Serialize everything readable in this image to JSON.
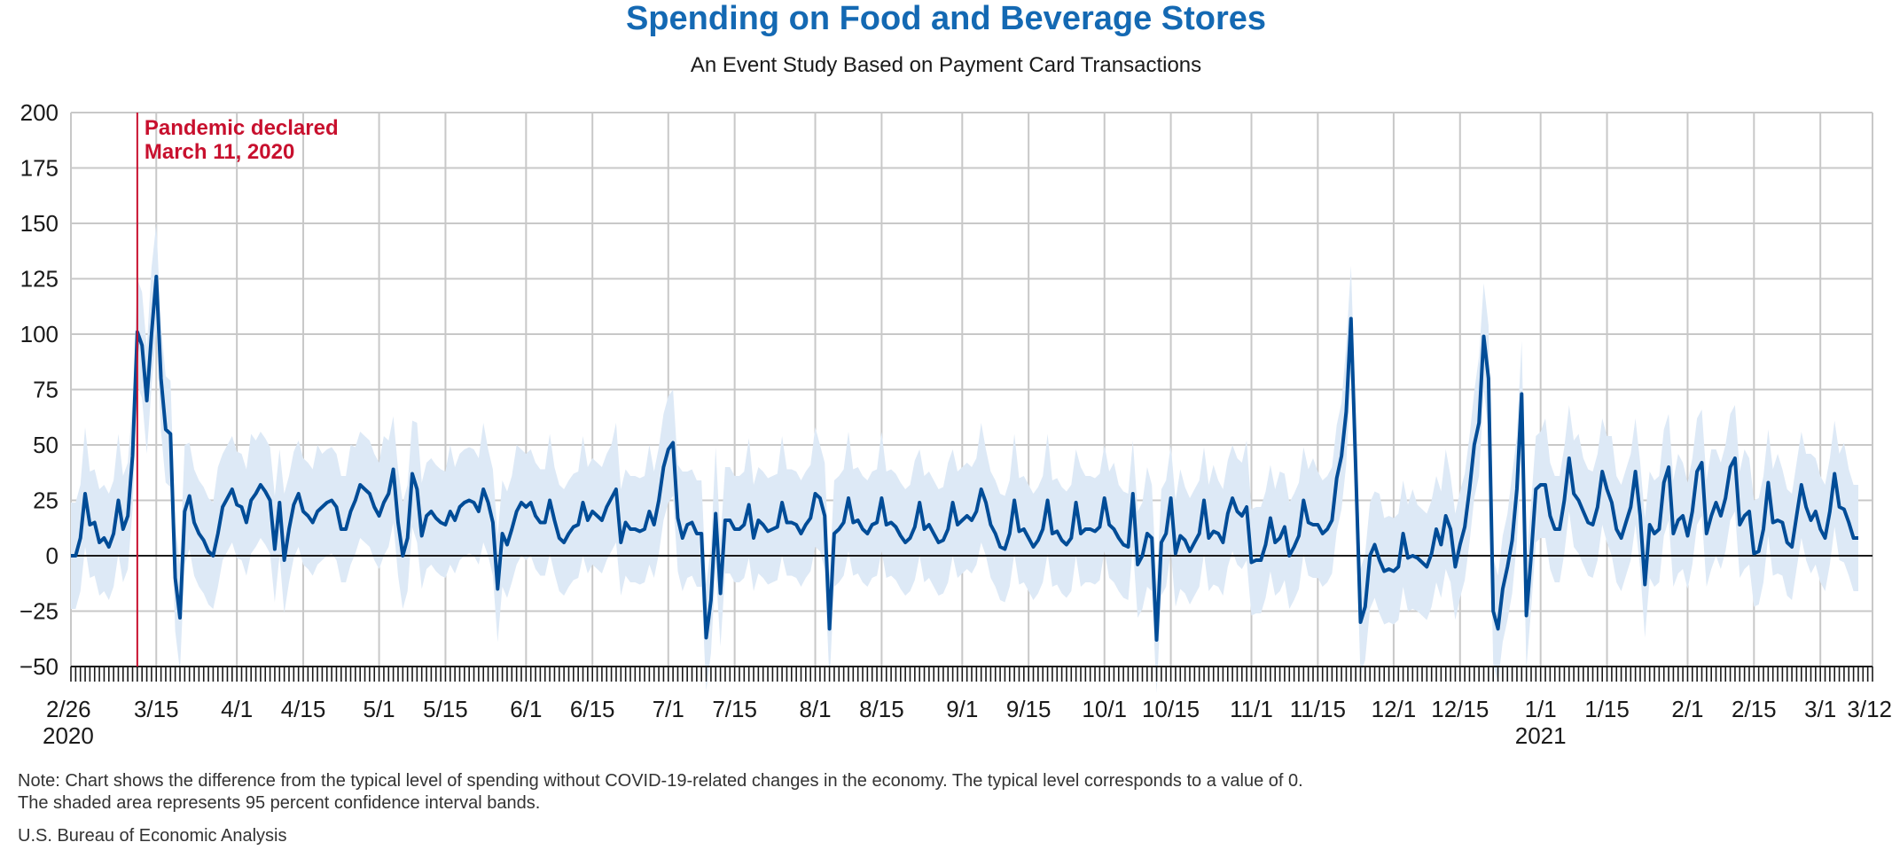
{
  "chart_data": {
    "type": "line",
    "title": "Spending on Food and Beverage Stores",
    "subtitle": "An Event Study Based on Payment Card Transactions",
    "ylim": [
      -50,
      200
    ],
    "yticks": [
      200,
      175,
      150,
      125,
      100,
      75,
      50,
      25,
      0,
      -25,
      -50
    ],
    "xlim": [
      "2020-02-26",
      "2021-03-12"
    ],
    "xticks": [
      {
        "date": "2020-02-26",
        "label": "2/26",
        "year": "2020"
      },
      {
        "date": "2020-03-15",
        "label": "3/15"
      },
      {
        "date": "2020-04-01",
        "label": "4/1"
      },
      {
        "date": "2020-04-15",
        "label": "4/15"
      },
      {
        "date": "2020-05-01",
        "label": "5/1"
      },
      {
        "date": "2020-05-15",
        "label": "5/15"
      },
      {
        "date": "2020-06-01",
        "label": "6/1"
      },
      {
        "date": "2020-06-15",
        "label": "6/15"
      },
      {
        "date": "2020-07-01",
        "label": "7/1"
      },
      {
        "date": "2020-07-15",
        "label": "7/15"
      },
      {
        "date": "2020-08-01",
        "label": "8/1"
      },
      {
        "date": "2020-08-15",
        "label": "8/15"
      },
      {
        "date": "2020-09-01",
        "label": "9/1"
      },
      {
        "date": "2020-09-15",
        "label": "9/15"
      },
      {
        "date": "2020-10-01",
        "label": "10/1"
      },
      {
        "date": "2020-10-15",
        "label": "10/15"
      },
      {
        "date": "2020-11-01",
        "label": "11/1"
      },
      {
        "date": "2020-11-15",
        "label": "11/15"
      },
      {
        "date": "2020-12-01",
        "label": "12/1"
      },
      {
        "date": "2020-12-15",
        "label": "12/15"
      },
      {
        "date": "2021-01-01",
        "label": "1/1",
        "year": "2021"
      },
      {
        "date": "2021-01-15",
        "label": "1/15"
      },
      {
        "date": "2021-02-01",
        "label": "2/1"
      },
      {
        "date": "2021-02-15",
        "label": "2/15"
      },
      {
        "date": "2021-03-01",
        "label": "3/1"
      },
      {
        "date": "2021-03-12",
        "label": "3/12"
      }
    ],
    "annotation": {
      "date": "2020-03-11",
      "lines": [
        "Pandemic declared",
        "March 11, 2020"
      ]
    },
    "grid": true,
    "series_start_date": "2020-02-26",
    "series": [
      {
        "values": [
          0,
          0,
          8,
          28,
          14,
          15,
          6,
          8,
          4,
          10,
          25,
          12,
          18,
          45,
          101,
          95,
          70,
          100,
          126,
          80,
          57,
          55,
          -10,
          -28,
          20,
          27,
          15,
          10,
          7,
          2,
          0,
          10,
          22,
          26,
          30,
          23,
          22,
          15,
          25,
          28,
          32,
          29,
          25,
          3,
          24,
          -2,
          12,
          23,
          28,
          20,
          18,
          15,
          20,
          22,
          24,
          25,
          22,
          12,
          12,
          20,
          25,
          32,
          30,
          28,
          22,
          18,
          24,
          28,
          39,
          15,
          0,
          8,
          37,
          30,
          9,
          18,
          20,
          17,
          15,
          14,
          20,
          16,
          22,
          24,
          25,
          24,
          20,
          30,
          24,
          15,
          -15,
          10,
          5,
          12,
          20,
          24,
          22,
          24,
          18,
          15,
          15,
          25,
          16,
          8,
          6,
          10,
          13,
          14,
          24,
          16,
          20,
          18,
          16,
          22,
          26,
          30,
          6,
          15,
          12,
          12,
          11,
          12,
          20,
          14,
          25,
          40,
          48,
          51,
          17,
          8,
          14,
          15,
          10,
          10,
          -37,
          -20,
          19,
          -17,
          16,
          16,
          12,
          12,
          14,
          23,
          8,
          16,
          14,
          11,
          12,
          13,
          24,
          15,
          15,
          14,
          10,
          14,
          17,
          28,
          26,
          18,
          -33,
          10,
          12,
          15,
          26,
          15,
          16,
          12,
          10,
          14,
          15,
          26,
          14,
          15,
          13,
          9,
          6,
          8,
          13,
          24,
          12,
          14,
          10,
          6,
          7,
          12,
          24,
          14,
          16,
          18,
          16,
          20,
          30,
          24,
          14,
          10,
          4,
          3,
          10,
          25,
          11,
          12,
          8,
          4,
          7,
          12,
          25,
          10,
          11,
          7,
          5,
          8,
          24,
          10,
          12,
          12,
          11,
          13,
          26,
          14,
          12,
          8,
          5,
          4,
          28,
          -4,
          0,
          10,
          8,
          -38,
          6,
          10,
          26,
          1,
          9,
          7,
          2,
          6,
          10,
          25,
          8,
          11,
          10,
          6,
          19,
          26,
          20,
          18,
          22,
          -3,
          -2,
          -2,
          5,
          17,
          6,
          8,
          13,
          0,
          4,
          9,
          25,
          15,
          14,
          14,
          10,
          12,
          16,
          35,
          45,
          65,
          107,
          40,
          -30,
          -23,
          0,
          5,
          -2,
          -7,
          -6,
          -7,
          -5,
          10,
          -1,
          0,
          -1,
          -3,
          -5,
          1,
          12,
          5,
          18,
          12,
          -5,
          5,
          13,
          30,
          50,
          60,
          99,
          80,
          -25,
          -33,
          -15,
          -5,
          7,
          30,
          73,
          -27,
          0,
          30,
          32,
          32,
          18,
          12,
          12,
          25,
          44,
          28,
          25,
          20,
          15,
          14,
          22,
          38,
          30,
          24,
          12,
          8,
          15,
          22,
          38,
          18,
          -13,
          14,
          10,
          12,
          33,
          40,
          10,
          16,
          18,
          9,
          20,
          38,
          42,
          10,
          18,
          24,
          18,
          26,
          40,
          44,
          14,
          18,
          20,
          1,
          2,
          12,
          33,
          15,
          16,
          15,
          6,
          4,
          18,
          32,
          22,
          16,
          20,
          12,
          8,
          20,
          37,
          22,
          21,
          15,
          8,
          8
        ]
      }
    ],
    "ci_halfwidth": 24
  },
  "footer": {
    "note1": "Note: Chart shows the difference from the typical level of spending without COVID-19-related changes in the economy. The typical level corresponds to a value of 0.",
    "note2": "The shaded area represents 95 percent confidence interval bands.",
    "source": "U.S. Bureau of Economic Analysis"
  },
  "colors": {
    "line": "#004c97",
    "band": "#dde9f6",
    "grid": "#c8c8c8",
    "annotation": "#c8102e",
    "title": "#1469b3"
  }
}
